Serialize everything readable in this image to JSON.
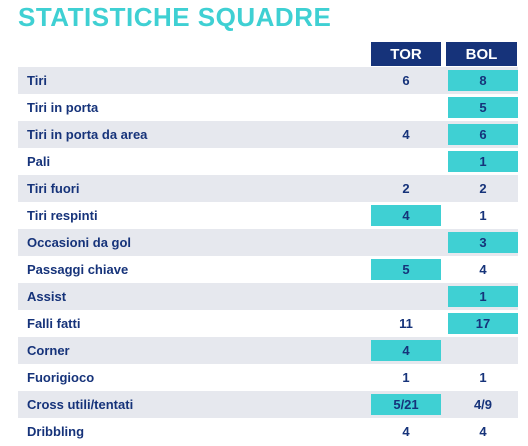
{
  "title": "STATISTICHE SQUADRE",
  "teams": {
    "home": "TOR",
    "away": "BOL"
  },
  "colors": {
    "accent": "#3fd0d3",
    "navy": "#16337a",
    "shade": "#e6e8ee"
  },
  "rows": [
    {
      "label": "Tiri",
      "tor": "6",
      "bol": "8",
      "tor_hl": false,
      "bol_hl": true
    },
    {
      "label": "Tiri in porta",
      "tor": "",
      "bol": "5",
      "tor_hl": false,
      "bol_hl": true
    },
    {
      "label": "Tiri in porta da area",
      "tor": "4",
      "bol": "6",
      "tor_hl": false,
      "bol_hl": true
    },
    {
      "label": "Pali",
      "tor": "",
      "bol": "1",
      "tor_hl": false,
      "bol_hl": true
    },
    {
      "label": "Tiri fuori",
      "tor": "2",
      "bol": "2",
      "tor_hl": false,
      "bol_hl": false
    },
    {
      "label": "Tiri respinti",
      "tor": "4",
      "bol": "1",
      "tor_hl": true,
      "bol_hl": false
    },
    {
      "label": "Occasioni da gol",
      "tor": "",
      "bol": "3",
      "tor_hl": false,
      "bol_hl": true
    },
    {
      "label": "Passaggi chiave",
      "tor": "5",
      "bol": "4",
      "tor_hl": true,
      "bol_hl": false
    },
    {
      "label": "Assist",
      "tor": "",
      "bol": "1",
      "tor_hl": false,
      "bol_hl": true
    },
    {
      "label": "Falli fatti",
      "tor": "11",
      "bol": "17",
      "tor_hl": false,
      "bol_hl": true
    },
    {
      "label": "Corner",
      "tor": "4",
      "bol": "",
      "tor_hl": true,
      "bol_hl": false
    },
    {
      "label": "Fuorigioco",
      "tor": "1",
      "bol": "1",
      "tor_hl": false,
      "bol_hl": false
    },
    {
      "label": "Cross utili/tentati",
      "tor": "5/21",
      "bol": "4/9",
      "tor_hl": true,
      "bol_hl": false
    },
    {
      "label": "Dribbling",
      "tor": "4",
      "bol": "4",
      "tor_hl": false,
      "bol_hl": false
    }
  ]
}
